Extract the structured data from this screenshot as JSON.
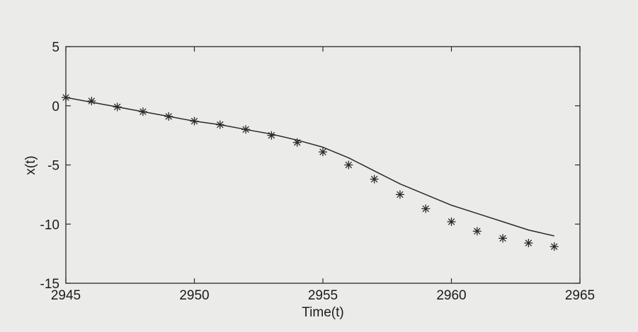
{
  "chart_data": {
    "type": "line",
    "title": "",
    "xlabel": "Time(t)",
    "ylabel": "x(t)",
    "xlim": [
      2945,
      2965
    ],
    "ylim": [
      -15,
      5
    ],
    "x_ticks": [
      "2945",
      "2950",
      "2955",
      "2960",
      "2965"
    ],
    "y_ticks": [
      "5",
      "0",
      "-5",
      "-10",
      "-15"
    ],
    "grid": false,
    "legend": false,
    "colors": {
      "line": "#2a2a2a",
      "marker": "#2a2a2a",
      "background": "#ebebea",
      "axes": "#2a2a2a"
    },
    "series": [
      {
        "style": "solid-line",
        "x": [
          2945,
          2946,
          2947,
          2948,
          2949,
          2950,
          2951,
          2952,
          2953,
          2954,
          2955,
          2956,
          2957,
          2958,
          2959,
          2960,
          2961,
          2962,
          2963,
          2964
        ],
        "y": [
          0.7,
          0.3,
          -0.1,
          -0.5,
          -0.9,
          -1.3,
          -1.6,
          -2.0,
          -2.4,
          -2.9,
          -3.5,
          -4.4,
          -5.5,
          -6.6,
          -7.5,
          -8.4,
          -9.1,
          -9.8,
          -10.5,
          -11.0
        ]
      },
      {
        "style": "asterisk-markers",
        "x": [
          2945,
          2946,
          2947,
          2948,
          2949,
          2950,
          2951,
          2952,
          2953,
          2954,
          2955,
          2956,
          2957,
          2958,
          2959,
          2960,
          2961,
          2962,
          2963,
          2964
        ],
        "y": [
          0.7,
          0.4,
          -0.1,
          -0.5,
          -0.9,
          -1.3,
          -1.6,
          -2.0,
          -2.5,
          -3.1,
          -3.9,
          -5.0,
          -6.2,
          -7.5,
          -8.7,
          -9.8,
          -10.6,
          -11.2,
          -11.6,
          -11.9
        ]
      }
    ]
  }
}
